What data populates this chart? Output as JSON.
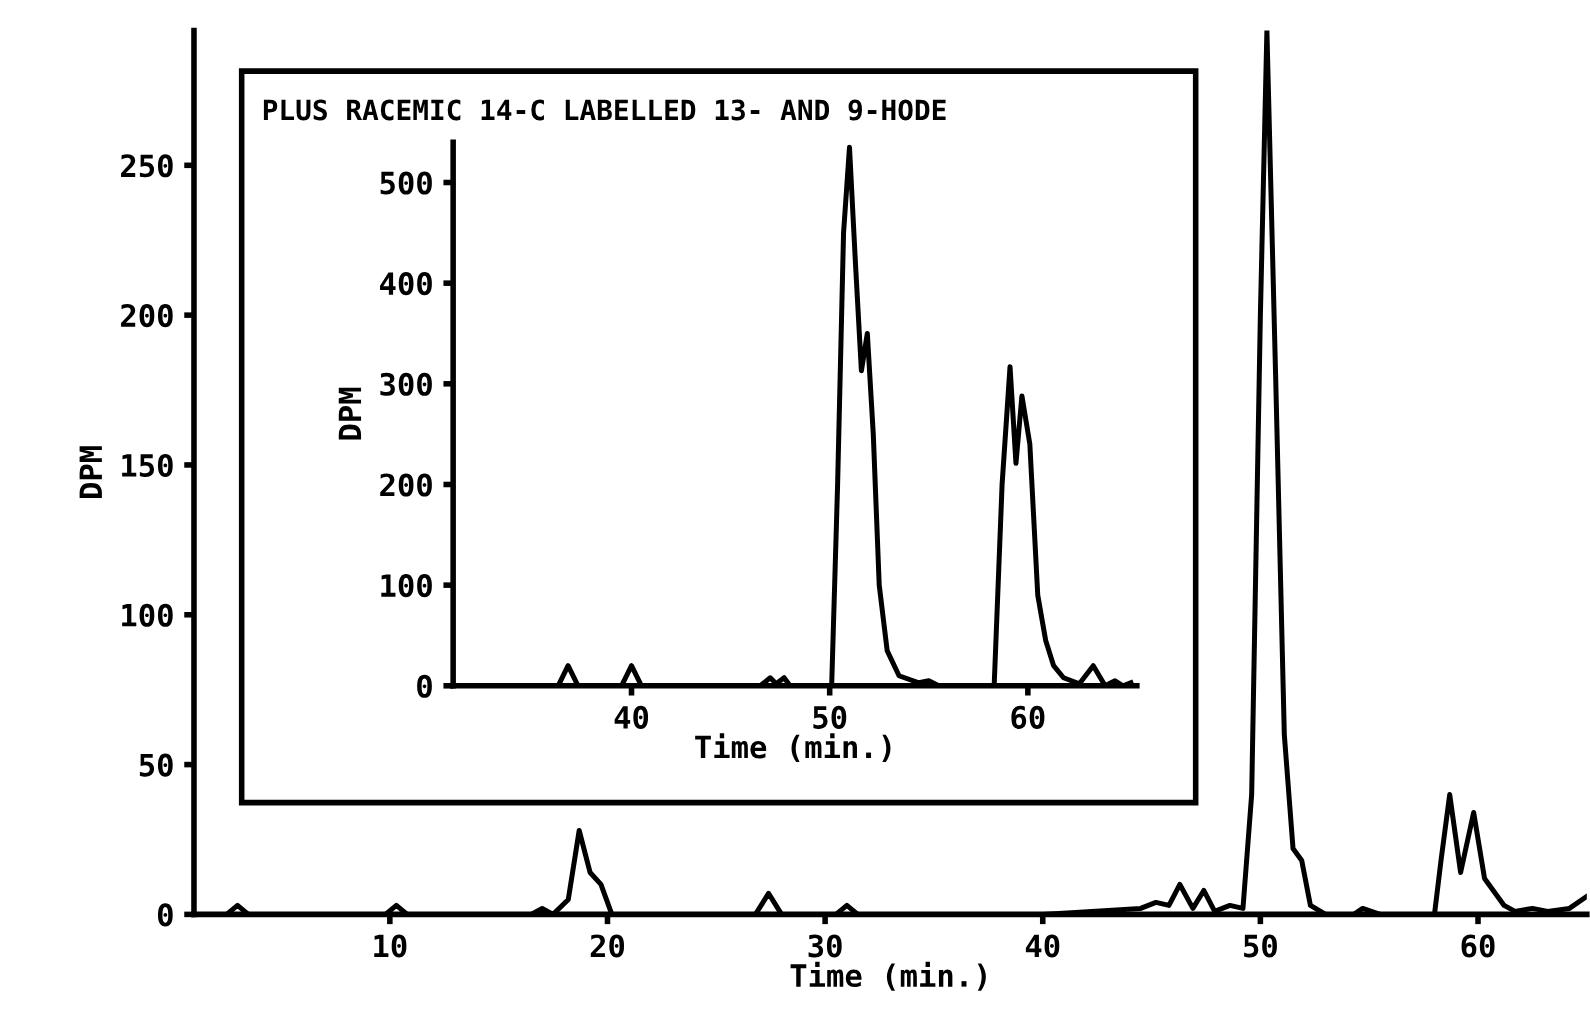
{
  "chart_data": [
    {
      "type": "line",
      "xlabel": "Time (min.)",
      "ylabel": "DPM",
      "xlim": [
        1,
        65
      ],
      "ylim": [
        0,
        295
      ],
      "xticks": [
        10,
        20,
        30,
        40,
        50,
        60
      ],
      "yticks": [
        0,
        50,
        100,
        150,
        200,
        250
      ],
      "grid": false,
      "legend": false,
      "marker": "none",
      "line_style": "solid",
      "series": [
        {
          "color": "#000000",
          "x": [
            1,
            2.5,
            3,
            3.5,
            5,
            9.8,
            10.3,
            10.8,
            12,
            16.5,
            17,
            17.5,
            18.2,
            18.7,
            19.2,
            19.7,
            20.2,
            20.6,
            22,
            26.8,
            27.4,
            28,
            30.5,
            31,
            31.5,
            40,
            44.5,
            45.2,
            45.8,
            46.3,
            46.9,
            47.4,
            47.9,
            48.6,
            49.2,
            49.6,
            50.0,
            50.3,
            50.7,
            51.1,
            51.5,
            51.9,
            52.3,
            53,
            54.3,
            54.7,
            55.5,
            58.0,
            58.3,
            58.7,
            59.2,
            59.8,
            60.3,
            60.7,
            61.2,
            61.7,
            62.5,
            63.2,
            64.2,
            65
          ],
          "values": [
            0,
            0,
            3,
            0,
            0,
            0,
            3,
            0,
            0,
            0,
            2,
            0,
            5,
            28,
            14,
            10,
            0,
            0,
            0,
            0,
            7,
            0,
            0,
            3,
            0,
            0,
            2,
            4,
            3,
            10,
            2,
            8,
            1,
            3,
            2,
            40,
            200,
            295,
            180,
            60,
            22,
            18,
            3,
            0,
            0,
            2,
            0,
            0,
            18,
            40,
            14,
            34,
            12,
            8,
            3,
            1,
            2,
            1,
            2,
            6
          ]
        }
      ]
    },
    {
      "type": "line",
      "title": "PLUS RACEMIC 14-C LABELLED 13- AND 9-HODE",
      "xlabel": "Time (min.)",
      "ylabel": "DPM",
      "xlim": [
        31,
        65.5
      ],
      "ylim": [
        0,
        540
      ],
      "xticks": [
        40,
        50,
        60
      ],
      "yticks": [
        0,
        100,
        200,
        300,
        400,
        500
      ],
      "grid": false,
      "legend": false,
      "marker": "none",
      "line_style": "solid",
      "series": [
        {
          "color": "#000000",
          "x": [
            31,
            36.3,
            36.8,
            37.3,
            39.5,
            40.0,
            40.5,
            46.5,
            47.0,
            47.3,
            47.7,
            48.0,
            50.1,
            50.4,
            50.7,
            51.0,
            51.3,
            51.6,
            51.9,
            52.2,
            52.5,
            52.9,
            53.5,
            54.5,
            55,
            55.5,
            58.3,
            58.7,
            59.1,
            59.4,
            59.7,
            60.1,
            60.5,
            60.9,
            61.3,
            61.8,
            62.6,
            63.3,
            63.9,
            64.4,
            64.8,
            65.2
          ],
          "values": [
            0,
            0,
            20,
            0,
            0,
            20,
            0,
            0,
            8,
            2,
            8,
            0,
            0,
            200,
            450,
            535,
            420,
            313,
            350,
            250,
            100,
            35,
            10,
            3,
            5,
            0,
            0,
            200,
            317,
            221,
            288,
            240,
            90,
            45,
            20,
            8,
            2,
            20,
            0,
            5,
            0,
            3
          ]
        }
      ]
    }
  ]
}
